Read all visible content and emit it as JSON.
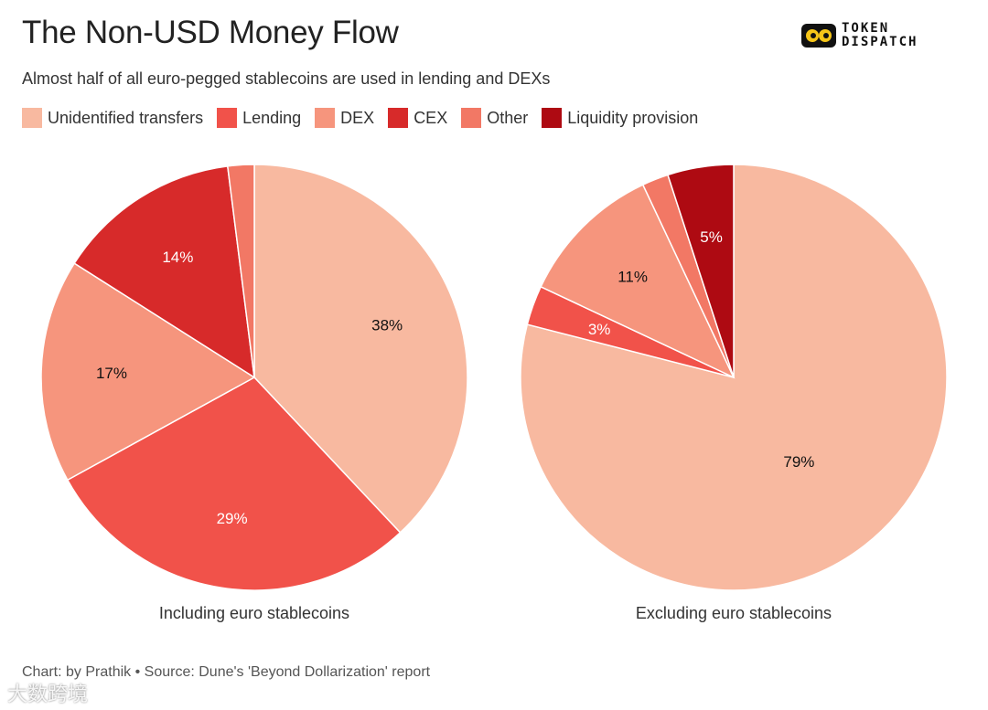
{
  "header": {
    "title": "The Non-USD Money Flow",
    "subtitle": "Almost half of all euro-pegged stablecoins are used in lending and DEXs"
  },
  "logo": {
    "line1": "TOKEN",
    "line2": "DISPATCH"
  },
  "legend": [
    {
      "label": "Unidentified transfers",
      "color": "#F8B9A0"
    },
    {
      "label": "Lending",
      "color": "#F1524A"
    },
    {
      "label": "DEX",
      "color": "#F6957D"
    },
    {
      "label": "CEX",
      "color": "#D72A2A"
    },
    {
      "label": "Other",
      "color": "#F27865"
    },
    {
      "label": "Liquidity provision",
      "color": "#AE0A12"
    }
  ],
  "chart_data": [
    {
      "type": "pie",
      "caption": "Including euro stablecoins",
      "slices": [
        {
          "label": "Unidentified transfers",
          "value": 38,
          "display": "38%",
          "color": "#F8B9A0",
          "text_color": "#111111"
        },
        {
          "label": "Lending",
          "value": 29,
          "display": "29%",
          "color": "#F1524A",
          "text_color": "#ffffff"
        },
        {
          "label": "DEX",
          "value": 17,
          "display": "17%",
          "color": "#F6957D",
          "text_color": "#111111"
        },
        {
          "label": "CEX",
          "value": 14,
          "display": "14%",
          "color": "#D72A2A",
          "text_color": "#ffffff"
        },
        {
          "label": "Other",
          "value": 2,
          "display": "",
          "color": "#F27865",
          "text_color": "#111111"
        }
      ]
    },
    {
      "type": "pie",
      "caption": "Excluding euro stablecoins",
      "slices": [
        {
          "label": "Unidentified transfers",
          "value": 79,
          "display": "79%",
          "color": "#F8B9A0",
          "text_color": "#111111"
        },
        {
          "label": "Lending",
          "value": 3,
          "display": "3%",
          "color": "#F1524A",
          "text_color": "#ffffff"
        },
        {
          "label": "DEX",
          "value": 11,
          "display": "11%",
          "color": "#F6957D",
          "text_color": "#111111"
        },
        {
          "label": "Other",
          "value": 2,
          "display": "",
          "color": "#F27865",
          "text_color": "#111111"
        },
        {
          "label": "Liquidity provision",
          "value": 5,
          "display": "5%",
          "color": "#AE0A12",
          "text_color": "#ffffff"
        }
      ]
    }
  ],
  "footer": "Chart: by Prathik • Source: Dune's 'Beyond Dollarization' report",
  "watermark": "大数跨境"
}
